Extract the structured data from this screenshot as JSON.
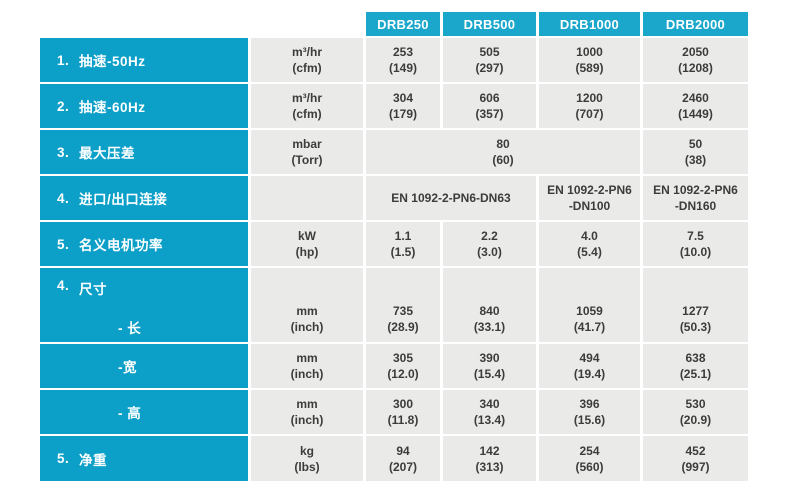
{
  "colors": {
    "header_teal": "#1BA7CC",
    "label_blue": "#0CA0C9",
    "cell_gray": "#EAEAE8",
    "text_dark": "#3C3C3C",
    "text_white": "#FFFFFF",
    "page_bg": "#FFFFFF"
  },
  "header": {
    "columns": [
      "DRB250",
      "DRB500",
      "DRB1000",
      "DRB2000"
    ]
  },
  "rows": [
    {
      "num": "1.",
      "label": "抽速-50Hz",
      "unit1": "m³/hr",
      "unit2": "(cfm)",
      "cells": [
        {
          "v1": "253",
          "v2": "(149)"
        },
        {
          "v1": "505",
          "v2": "(297)"
        },
        {
          "v1": "1000",
          "v2": "(589)"
        },
        {
          "v1": "2050",
          "v2": "(1208)"
        }
      ]
    },
    {
      "num": "2.",
      "label": "抽速-60Hz",
      "unit1": "m³/hr",
      "unit2": "(cfm)",
      "cells": [
        {
          "v1": "304",
          "v2": "(179)"
        },
        {
          "v1": "606",
          "v2": "(357)"
        },
        {
          "v1": "1200",
          "v2": "(707)"
        },
        {
          "v1": "2460",
          "v2": "(1449)"
        }
      ]
    },
    {
      "num": "3.",
      "label": "最大压差",
      "unit1": "mbar",
      "unit2": "(Torr)",
      "merged_drb250_drb1000": {
        "v1": "80",
        "v2": "(60)"
      },
      "drb2000": {
        "v1": "50",
        "v2": "(38)"
      }
    },
    {
      "num": "4.",
      "label": "进口/出口连接",
      "merged_drb250_drb500": "EN 1092-2-PN6-DN63",
      "drb1000": {
        "v1": "EN 1092-2-PN6",
        "v2": "-DN100"
      },
      "drb2000": {
        "v1": "EN 1092-2-PN6",
        "v2": "-DN160"
      }
    },
    {
      "num": "5.",
      "label": "名义电机功率",
      "unit1": "kW",
      "unit2": "(hp)",
      "cells": [
        {
          "v1": "1.1",
          "v2": "(1.5)"
        },
        {
          "v1": "2.2",
          "v2": "(3.0)"
        },
        {
          "v1": "4.0",
          "v2": "(5.4)"
        },
        {
          "v1": "7.5",
          "v2": "(10.0)"
        }
      ]
    },
    {
      "num": "4.",
      "label": "尺寸",
      "sub_label": "- 长",
      "unit1": "mm",
      "unit2": "(inch)",
      "cells": [
        {
          "v1": "735",
          "v2": "(28.9)"
        },
        {
          "v1": "840",
          "v2": "(33.1)"
        },
        {
          "v1": "1059",
          "v2": "(41.7)"
        },
        {
          "v1": "1277",
          "v2": "(50.3)"
        }
      ]
    },
    {
      "label": "-宽",
      "unit1": "mm",
      "unit2": "(inch)",
      "cells": [
        {
          "v1": "305",
          "v2": "(12.0)"
        },
        {
          "v1": "390",
          "v2": "(15.4)"
        },
        {
          "v1": "494",
          "v2": "(19.4)"
        },
        {
          "v1": "638",
          "v2": "(25.1)"
        }
      ]
    },
    {
      "label": "- 高",
      "unit1": "mm",
      "unit2": "(inch)",
      "cells": [
        {
          "v1": "300",
          "v2": "(11.8)"
        },
        {
          "v1": "340",
          "v2": "(13.4)"
        },
        {
          "v1": "396",
          "v2": "(15.6)"
        },
        {
          "v1": "530",
          "v2": "(20.9)"
        }
      ]
    },
    {
      "num": "5.",
      "label": "净重",
      "unit1": "kg",
      "unit2": "(lbs)",
      "cells": [
        {
          "v1": "94",
          "v2": "(207)"
        },
        {
          "v1": "142",
          "v2": "(313)"
        },
        {
          "v1": "254",
          "v2": "(560)"
        },
        {
          "v1": "452",
          "v2": "(997)"
        }
      ]
    }
  ]
}
